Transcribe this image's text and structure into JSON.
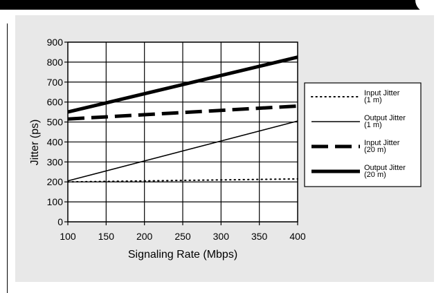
{
  "chart_data": {
    "type": "line",
    "xlabel": "Signaling Rate (Mbps)",
    "ylabel": "Jitter (ps)",
    "xlim": [
      100,
      400
    ],
    "ylim": [
      0,
      900
    ],
    "x_ticks": [
      100,
      150,
      200,
      250,
      300,
      350,
      400
    ],
    "y_ticks": [
      0,
      100,
      200,
      300,
      400,
      500,
      600,
      700,
      800,
      900
    ],
    "grid": true,
    "legend_position": "right",
    "series": [
      {
        "name": "Input Jitter (1 m)",
        "name_lines": [
          "Input Jitter",
          "(1 m)"
        ],
        "style": "dotted-thin",
        "x": [
          100,
          400
        ],
        "y": [
          200,
          215
        ]
      },
      {
        "name": "Output Jitter (1 m)",
        "name_lines": [
          "Output Jitter",
          "(1 m)"
        ],
        "style": "solid-thin",
        "x": [
          100,
          400
        ],
        "y": [
          205,
          505
        ]
      },
      {
        "name": "Input Jitter (20 m)",
        "name_lines": [
          "Input Jitter",
          "(20 m)"
        ],
        "style": "dashed-thick",
        "x": [
          100,
          400
        ],
        "y": [
          515,
          580
        ]
      },
      {
        "name": "Output Jitter (20 m)",
        "name_lines": [
          "Output Jitter",
          "(20 m)"
        ],
        "style": "solid-thick",
        "x": [
          100,
          400
        ],
        "y": [
          550,
          825
        ]
      }
    ]
  }
}
